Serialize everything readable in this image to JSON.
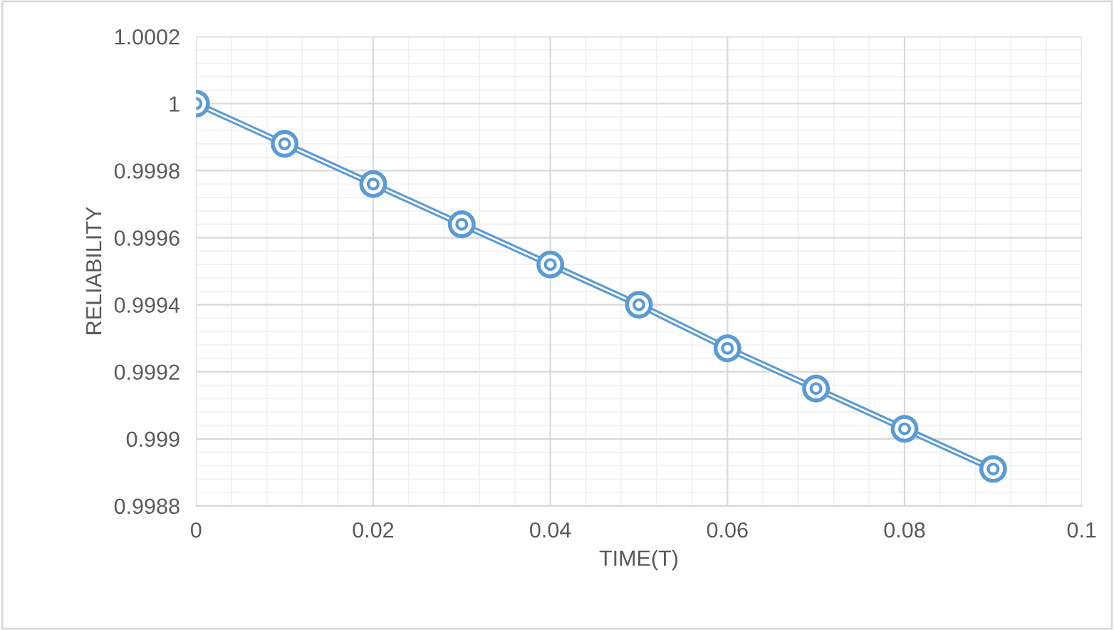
{
  "chart_data": {
    "type": "line",
    "xlabel": "TIME(T)",
    "ylabel": "RELIABILITY",
    "x": [
      0,
      0.01,
      0.02,
      0.03,
      0.04,
      0.05,
      0.06,
      0.07,
      0.08,
      0.09
    ],
    "series": [
      {
        "color": "#5b9bd5",
        "values": [
          1,
          0.99988,
          0.99976,
          0.99964,
          0.99952,
          0.9994,
          0.99927,
          0.99915,
          0.99903,
          0.99891
        ]
      }
    ],
    "xlim": [
      0,
      0.1
    ],
    "xticks": [
      0,
      0.02,
      0.04,
      0.06,
      0.08,
      0.1
    ],
    "ylim": [
      0.9988,
      1.0002
    ],
    "yticks": [
      0.9988,
      0.999,
      0.9992,
      0.9994,
      0.9996,
      0.9998,
      1,
      1.0002
    ],
    "grid": true,
    "marker": "circle",
    "line_style": "solid",
    "legend": false
  }
}
